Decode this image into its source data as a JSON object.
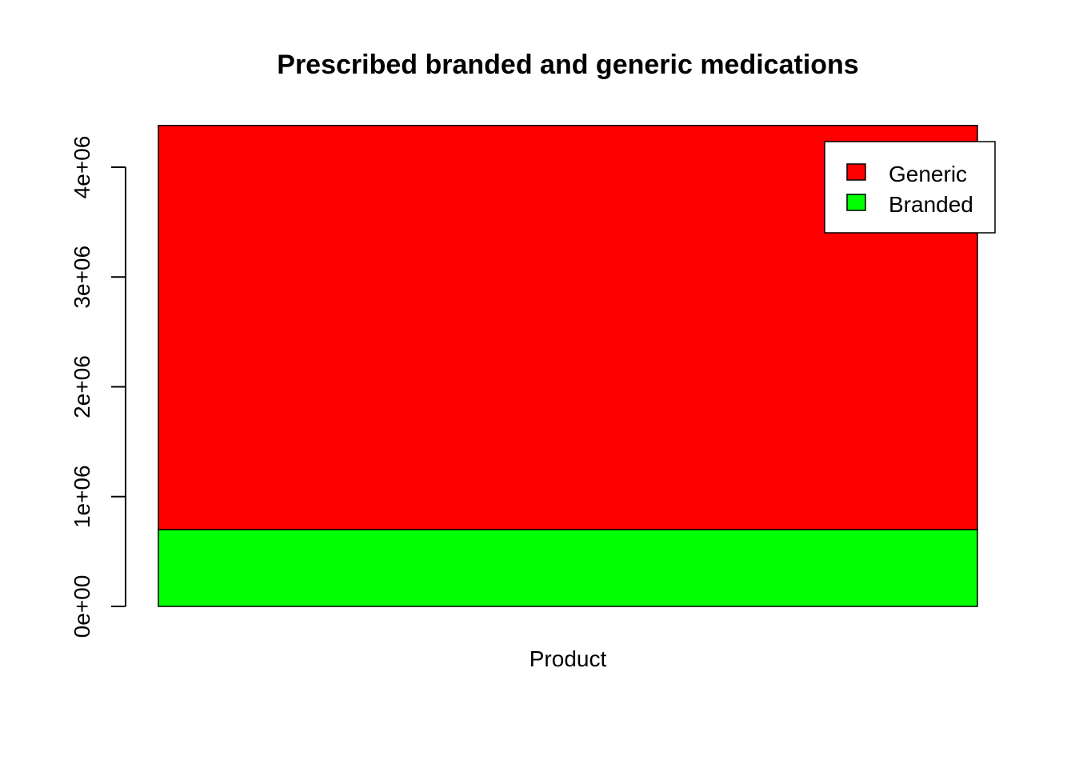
{
  "chart_data": {
    "type": "bar",
    "stacked": true,
    "title": "Prescribed branded and generic medications",
    "categories": [
      "Product"
    ],
    "series": [
      {
        "name": "Branded",
        "values": [
          700000
        ],
        "color": "#00ff00"
      },
      {
        "name": "Generic",
        "values": [
          3680000
        ],
        "color": "#ff0000"
      }
    ],
    "legend": {
      "position": "top-right",
      "entries": [
        {
          "label": "Generic",
          "color": "#ff0000"
        },
        {
          "label": "Branded",
          "color": "#00ff00"
        }
      ]
    },
    "yticks": [
      {
        "value": 0,
        "label": "0e+00"
      },
      {
        "value": 1000000,
        "label": "1e+06"
      },
      {
        "value": 2000000,
        "label": "2e+06"
      },
      {
        "value": 3000000,
        "label": "3e+06"
      },
      {
        "value": 4000000,
        "label": "4e+06"
      }
    ],
    "ylim": [
      0,
      4380000
    ],
    "grid": false
  }
}
